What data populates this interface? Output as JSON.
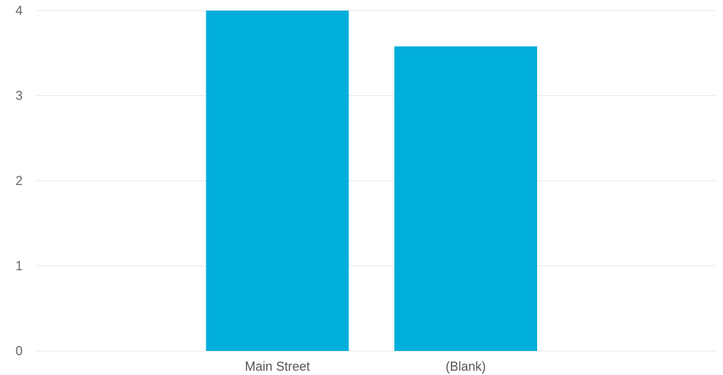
{
  "chart_data": {
    "type": "bar",
    "categories": [
      "Main Street",
      "(Blank)"
    ],
    "values": [
      4.0,
      3.58
    ],
    "ylim": [
      0,
      4
    ],
    "yticks": [
      0,
      1,
      2,
      3,
      4
    ],
    "grid": true,
    "bar_color": "#00AEDB",
    "title": "",
    "xlabel": "",
    "ylabel": ""
  }
}
